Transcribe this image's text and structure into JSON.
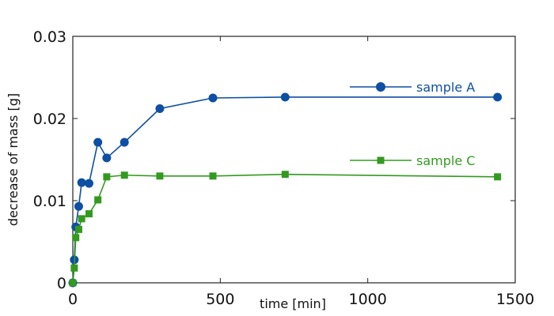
{
  "chart_data": {
    "type": "line",
    "xlabel": "time [min]",
    "ylabel": "decrease of mass [g]",
    "xlim": [
      0,
      1500
    ],
    "ylim": [
      0,
      0.03
    ],
    "x_ticks": [
      0,
      500,
      1000,
      1500
    ],
    "x_tick_labels": [
      "0",
      "500",
      "1000",
      "1500"
    ],
    "y_ticks": [
      0,
      0.01,
      0.02,
      0.03
    ],
    "y_tick_labels": [
      "0",
      "0.01",
      "0.02",
      "0.03"
    ],
    "grid": false,
    "legend_position": "right",
    "series": [
      {
        "name": "sample A",
        "color": "#0d4fa3",
        "marker": "circle",
        "x": [
          0,
          5,
          10,
          20,
          30,
          55,
          85,
          115,
          175,
          295,
          475,
          720,
          1440
        ],
        "y": [
          0,
          0.0028,
          0.0068,
          0.0093,
          0.0122,
          0.0121,
          0.0171,
          0.0152,
          0.0171,
          0.0212,
          0.0225,
          0.0226,
          0.0226
        ]
      },
      {
        "name": "sample C",
        "color": "#339a20",
        "marker": "square",
        "x": [
          0,
          5,
          10,
          20,
          30,
          55,
          85,
          115,
          175,
          295,
          475,
          720,
          1440
        ],
        "y": [
          0,
          0.0018,
          0.0055,
          0.0065,
          0.0078,
          0.0084,
          0.0101,
          0.0129,
          0.0131,
          0.013,
          0.013,
          0.0132,
          0.0129
        ]
      }
    ]
  }
}
